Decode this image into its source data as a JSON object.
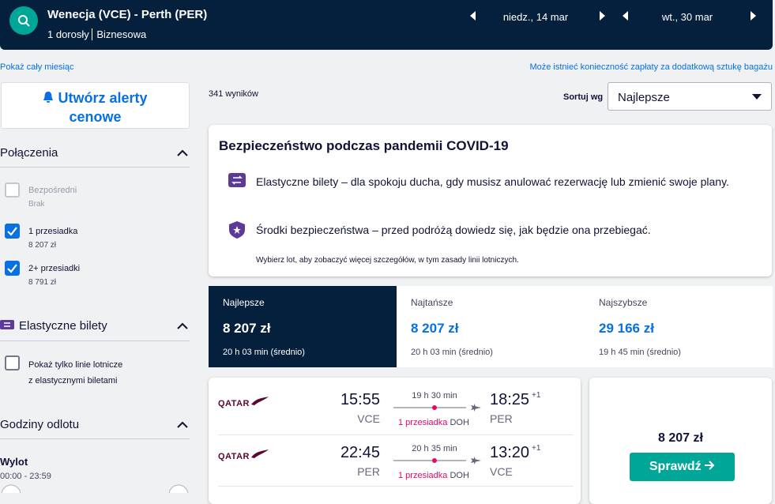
{
  "header": {
    "route": "Wenecja (VCE) - Perth (PER)",
    "passengers": "1 dorosły",
    "cabin": "Biznesowa",
    "outbound_date": "niedz., 14 mar",
    "return_date": "wt., 30 mar"
  },
  "links": {
    "month": "Pokaż cały miesiąc",
    "baggage": "Może istnieć konieczność zapłaty za dodatkową sztukę bagażu"
  },
  "alert_button": "Utwórz alerty cenowe",
  "results": {
    "count": "341 wyników",
    "sort_label": "Sortuj wg",
    "sort_value": "Najlepsze"
  },
  "filters": {
    "connections": {
      "title": "Połączenia",
      "options": [
        {
          "label": "Bezpośredni",
          "price": "Brak",
          "checked": false,
          "disabled": true
        },
        {
          "label": "1 przesiadka",
          "price": "8 207 zł",
          "checked": true,
          "disabled": false
        },
        {
          "label": "2+ przesiadki",
          "price": "8 791 zł",
          "checked": true,
          "disabled": false
        }
      ]
    },
    "flexible": {
      "title": "Elastyczne bilety",
      "option": {
        "lines": [
          "Pokaż tylko linie lotnicze",
          "z elastycznymi biletami"
        ],
        "checked": false
      }
    },
    "times": {
      "title": "Godziny odlotu",
      "subtitle": "Wylot",
      "range": "00:00 - 23:59"
    }
  },
  "covid": {
    "title": "Bezpieczeństwo podczas pandemii COVID-19",
    "items": [
      "Elastyczne bilety – dla spokoju ducha, gdy musisz anulować rezerwację lub zmienić swoje plany.",
      "Środki bezpieczeństwa – przed podróżą dowiedz się, jak będzie ona przebiegać."
    ],
    "note": "Wybierz lot, aby zobaczyć więcej szczegółów, w tym zasady linii lotniczych."
  },
  "tabs": [
    {
      "label": "Najlepsze",
      "price": "8 207 zł",
      "duration": "20 h 03 min (średnio)",
      "active": true
    },
    {
      "label": "Najtańsze",
      "price": "8 207 zł",
      "duration": "20 h 03 min (średnio)",
      "active": false
    },
    {
      "label": "Najszybsze",
      "price": "29 166 zł",
      "duration": "19 h 45 min (średnio)",
      "active": false
    }
  ],
  "flight": {
    "airline": "QATAR",
    "legs": [
      {
        "depart_time": "15:55",
        "depart_airport": "VCE",
        "duration": "19 h 30 min",
        "stops": "1 przesiadka",
        "stop_airport": "DOH",
        "arrive_time": "18:25",
        "day_offset": "+1",
        "arrive_airport": "PER"
      },
      {
        "depart_time": "22:45",
        "depart_airport": "PER",
        "duration": "20 h 35 min",
        "stops": "1 przesiadka",
        "stop_airport": "DOH",
        "arrive_time": "13:20",
        "day_offset": "+1",
        "arrive_airport": "VCE"
      }
    ],
    "price": "8 207 zł",
    "button": "Sprawdź"
  }
}
